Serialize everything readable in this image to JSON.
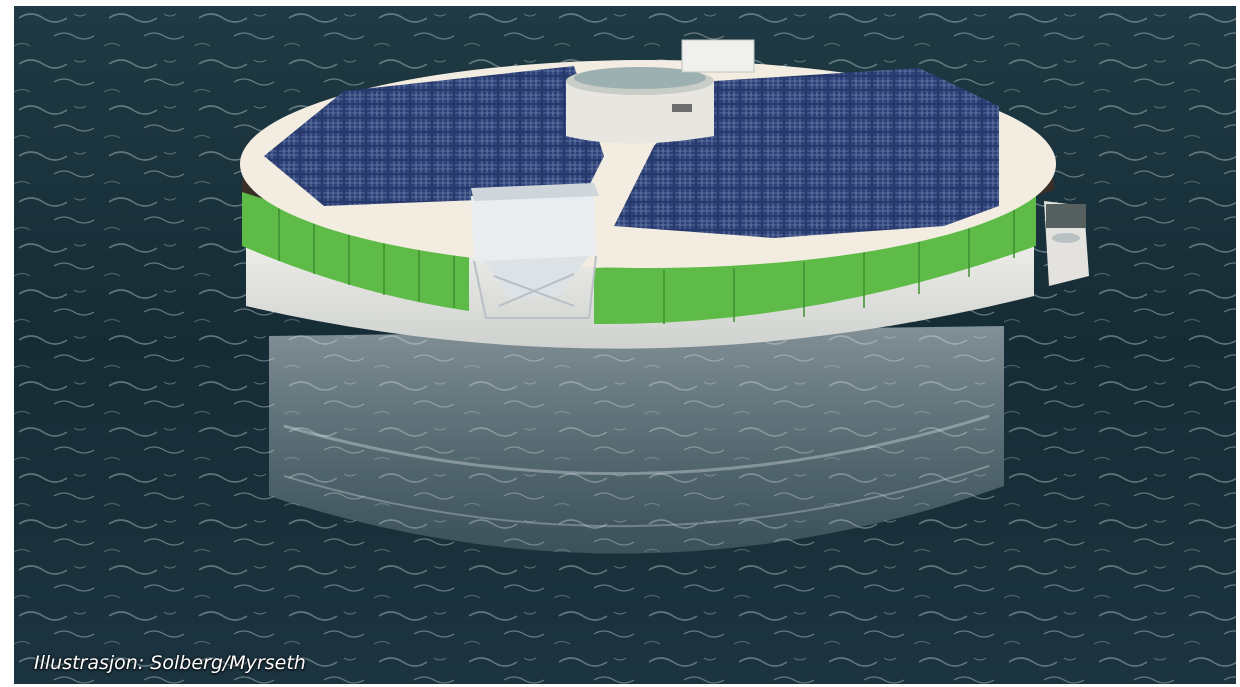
{
  "image": {
    "credit": "Illustrasjon: Solberg/Myrseth"
  },
  "colors": {
    "sea_dark": "#142a33",
    "sea_mid": "#27414b",
    "deck": "#f3ece0",
    "rim": "#3a2f28",
    "wall_green": "#5fbb48",
    "hull": "#e6e4de",
    "panel": "#27386a",
    "panel_grid": "#a7b6d6"
  }
}
